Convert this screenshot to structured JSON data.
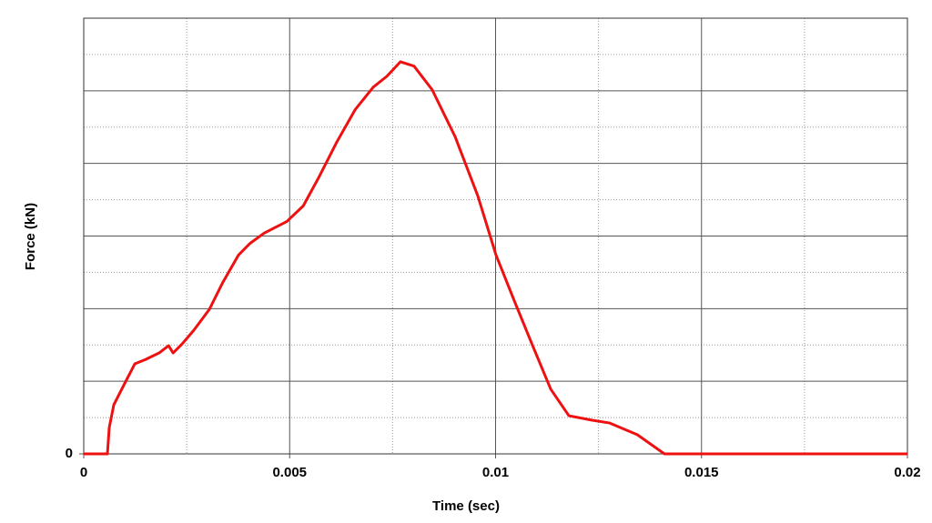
{
  "chart_data": {
    "type": "line",
    "x_label": "Time (sec)",
    "y_label": "Force (kN)",
    "xlim": [
      0,
      0.02
    ],
    "xticks": [
      0,
      0.005,
      0.01,
      0.015,
      0.02
    ],
    "x_minor_grid": [
      0.0025,
      0.0075,
      0.0125,
      0.0175
    ],
    "ylim": [
      0,
      12
    ],
    "yticks": [
      0
    ],
    "y_major_grid": [
      2,
      4,
      6,
      8,
      10
    ],
    "y_minor_grid": [
      1,
      3,
      5,
      7,
      9,
      11
    ],
    "grid": true,
    "x": [
      0,
      0.000575,
      0.00062,
      0.00073,
      0.00099,
      0.00124,
      0.0015,
      0.00183,
      0.00206,
      0.00217,
      0.00239,
      0.00267,
      0.00305,
      0.00338,
      0.00376,
      0.00404,
      0.00438,
      0.00493,
      0.00533,
      0.0057,
      0.00614,
      0.00659,
      0.00703,
      0.00736,
      0.00769,
      0.00802,
      0.00846,
      0.00902,
      0.00957,
      0.01001,
      0.01045,
      0.0109,
      0.01134,
      0.01178,
      0.01233,
      0.01277,
      0.01344,
      0.0141,
      0.02
    ],
    "series": [
      {
        "color": "#ee1111",
        "values": [
          0,
          0,
          0.73,
          1.35,
          1.93,
          2.48,
          2.6,
          2.78,
          2.98,
          2.78,
          3.03,
          3.4,
          3.98,
          4.73,
          5.48,
          5.8,
          6.08,
          6.4,
          6.83,
          7.6,
          8.58,
          9.48,
          10.1,
          10.4,
          10.8,
          10.68,
          10.03,
          8.73,
          7.1,
          5.48,
          4.23,
          2.98,
          1.78,
          1.05,
          0.93,
          0.85,
          0.53,
          0,
          0
        ]
      }
    ]
  }
}
